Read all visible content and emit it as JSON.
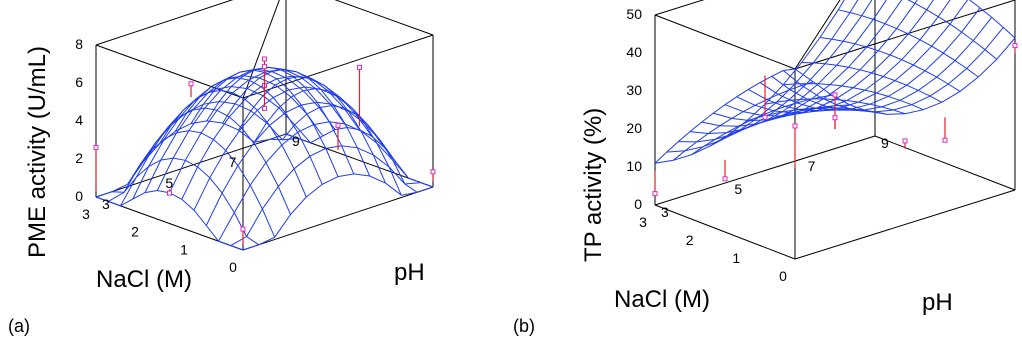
{
  "chart_data": [
    {
      "type": "surface3d",
      "panel_label": "(a)",
      "zlabel": "PME activity (U/mL)",
      "xlabel": "NaCl (M)",
      "ylabel": "pH",
      "x_ticks": [
        "0",
        "1",
        "2",
        "3"
      ],
      "y_ticks": [
        "3",
        "5",
        "7",
        "9"
      ],
      "z_ticks": [
        "0",
        "2",
        "4",
        "6",
        "8"
      ],
      "xlim": [
        0,
        3
      ],
      "ylim": [
        3,
        9
      ],
      "zlim": [
        0,
        8
      ],
      "surface_peak": {
        "nacl": 1.5,
        "ph": 6,
        "value": 6.3
      },
      "observations": [
        {
          "nacl": 0,
          "ph": 3,
          "observed": 1.1,
          "predicted": 0.3
        },
        {
          "nacl": 1.5,
          "ph": 3,
          "observed": 1.6,
          "predicted": 1.8
        },
        {
          "nacl": 3,
          "ph": 3,
          "observed": 2.6,
          "predicted": 0.3
        },
        {
          "nacl": 0,
          "ph": 6,
          "observed": 4.9,
          "predicted": 3.6
        },
        {
          "nacl": 1.5,
          "ph": 6,
          "observed": 7.0,
          "predicted": 6.3
        },
        {
          "nacl": 1.5,
          "ph": 6,
          "observed": 6.6,
          "predicted": 6.3
        },
        {
          "nacl": 1.5,
          "ph": 6,
          "observed": 5.6,
          "predicted": 6.3
        },
        {
          "nacl": 1.5,
          "ph": 6,
          "observed": 4.4,
          "predicted": 6.3
        },
        {
          "nacl": 3,
          "ph": 6,
          "observed": 4.3,
          "predicted": 3.6
        },
        {
          "nacl": 0,
          "ph": 9,
          "observed": 0.8,
          "predicted": 0.3
        },
        {
          "nacl": 1.5,
          "ph": 9,
          "observed": 4.9,
          "predicted": 1.8
        }
      ]
    },
    {
      "type": "surface3d",
      "panel_label": "(b)",
      "zlabel": "TP activity (%)",
      "xlabel": "NaCl (M)",
      "ylabel": "pH",
      "x_ticks": [
        "0",
        "1",
        "2",
        "3"
      ],
      "y_ticks": [
        "3",
        "5",
        "7",
        "9"
      ],
      "z_ticks": [
        "0",
        "10",
        "20",
        "30",
        "40",
        "50"
      ],
      "xlim": [
        0,
        3
      ],
      "ylim": [
        3,
        9
      ],
      "zlim": [
        0,
        50
      ],
      "observations": [
        {
          "nacl": 0,
          "ph": 3,
          "observed": 35,
          "predicted": 24
        },
        {
          "nacl": 1.5,
          "ph": 3,
          "observed": 14,
          "predicted": 19
        },
        {
          "nacl": 3,
          "ph": 3,
          "observed": 3,
          "predicted": 9
        },
        {
          "nacl": 0,
          "ph": 6,
          "observed": 22,
          "predicted": 20
        },
        {
          "nacl": 1.5,
          "ph": 6,
          "observed": 27,
          "predicted": 18
        },
        {
          "nacl": 1.5,
          "ph": 6,
          "observed": 21,
          "predicted": 18
        },
        {
          "nacl": 3,
          "ph": 6,
          "observed": 14,
          "predicted": 25
        },
        {
          "nacl": 0,
          "ph": 9,
          "observed": 38,
          "predicted": 36
        },
        {
          "nacl": 1.5,
          "ph": 9,
          "observed": 6,
          "predicted": 12
        }
      ]
    }
  ]
}
